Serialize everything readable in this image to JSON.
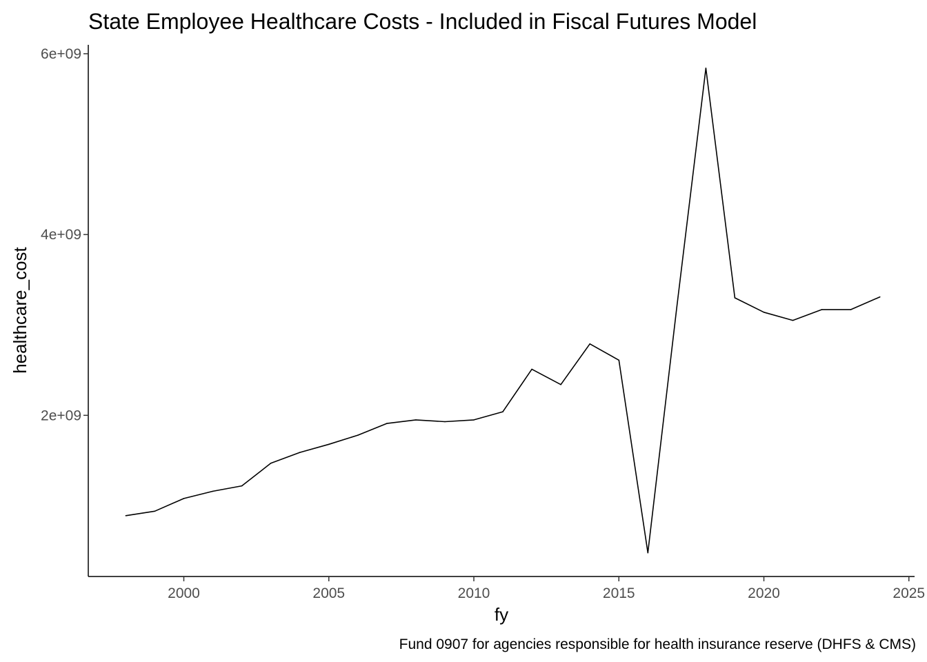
{
  "chart_data": {
    "type": "line",
    "title": "State Employee Healthcare Costs - Included in Fiscal Futures Model",
    "caption": "Fund 0907 for agencies responsible for health insurance reserve (DHFS & CMS)",
    "xlabel": "fy",
    "ylabel": "healthcare_cost",
    "xlim": [
      1997.3,
      2025.3
    ],
    "ylim": [
      0,
      6000000000
    ],
    "x_ticks": [
      2000,
      2005,
      2010,
      2015,
      2020,
      2025
    ],
    "x_tick_labels": [
      "2000",
      "2005",
      "2010",
      "2015",
      "2020",
      "2025"
    ],
    "y_ticks": [
      2000000000,
      4000000000,
      6000000000
    ],
    "y_tick_labels": [
      "2e+09",
      "4e+09",
      "6e+09"
    ],
    "grid": false,
    "legend": "none",
    "line_color": "#000000",
    "x": [
      1998,
      1999,
      2000,
      2001,
      2002,
      2003,
      2004,
      2005,
      2006,
      2007,
      2008,
      2009,
      2010,
      2011,
      2012,
      2013,
      2014,
      2015,
      2016,
      2017,
      2018,
      2019,
      2020,
      2021,
      2022,
      2023,
      2024
    ],
    "values": [
      890000000,
      940000000,
      1080000000,
      1160000000,
      1220000000,
      1470000000,
      1590000000,
      1680000000,
      1780000000,
      1910000000,
      1950000000,
      1930000000,
      1950000000,
      2040000000,
      2510000000,
      2340000000,
      2790000000,
      2610000000,
      480000000,
      3200000000,
      5840000000,
      3300000000,
      3140000000,
      3050000000,
      3170000000,
      3170000000,
      3310000000
    ]
  }
}
